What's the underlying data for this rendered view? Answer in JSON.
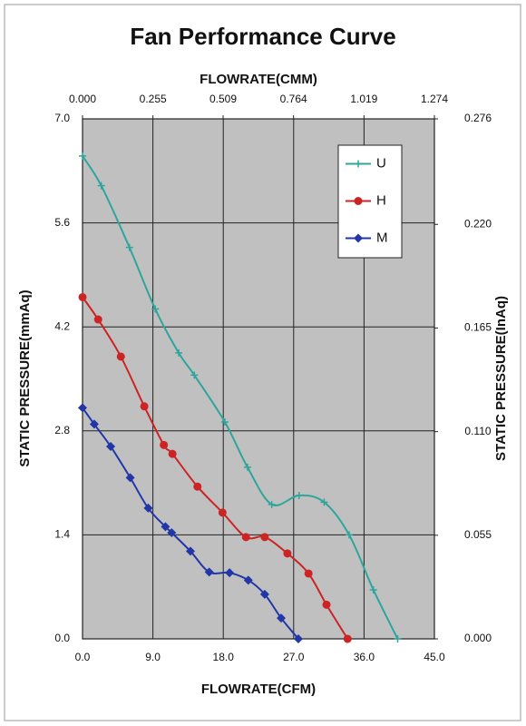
{
  "chart_data": {
    "type": "line",
    "title": "Fan Performance Curve",
    "x_label": "FLOWRATE(CFM)",
    "x2_label": "FLOWRATE(CMM)",
    "y_label": "STATIC PRESSURE(mmAq)",
    "y2_label": "STATIC PRESSURE(InAq)",
    "xlim": [
      0,
      45
    ],
    "xticks": [
      {
        "value": 0,
        "label": "0.0"
      },
      {
        "value": 9,
        "label": "9.0"
      },
      {
        "value": 18,
        "label": "18.0"
      },
      {
        "value": 27,
        "label": "27.0"
      },
      {
        "value": 36,
        "label": "36.0"
      },
      {
        "value": 45,
        "label": "45.0"
      }
    ],
    "x2lim": [
      0,
      1.274
    ],
    "x2ticks": [
      {
        "value": 0,
        "label": "0.000"
      },
      0.255,
      0.509,
      0.764,
      1.019,
      1.274
    ],
    "ylim": [
      0,
      7
    ],
    "yticks": [
      {
        "value": 0,
        "label": "0.0"
      },
      1.4,
      2.8,
      4.2,
      5.6,
      {
        "value": 7,
        "label": "7.0"
      }
    ],
    "y2lim": [
      0,
      0.276
    ],
    "y2ticks": [
      {
        "value": 0,
        "label": "0.000"
      },
      0.055,
      {
        "value": 0.11,
        "label": "0.110"
      },
      0.165,
      {
        "value": 0.22,
        "label": "0.220"
      },
      0.276
    ],
    "grid": true,
    "legend": "upper right",
    "series": [
      {
        "name": "U",
        "color": "#2ea59c",
        "marker": "plus",
        "x": [
          0,
          2.4,
          6.0,
          9.3,
          12.3,
          14.3,
          18.2,
          21.1,
          24.2,
          27.7,
          30.9,
          34.1,
          37.2,
          40.3
        ],
        "values": [
          6.5,
          6.1,
          5.27,
          4.44,
          3.85,
          3.55,
          2.92,
          2.31,
          1.81,
          1.93,
          1.84,
          1.4,
          0.66,
          0
        ]
      },
      {
        "name": "H",
        "color": "#cc2424",
        "marker": "circle",
        "x": [
          0,
          2.0,
          4.9,
          7.9,
          10.4,
          11.5,
          14.7,
          17.9,
          20.9,
          23.3,
          26.2,
          28.9,
          31.2,
          33.9
        ],
        "values": [
          4.6,
          4.3,
          3.8,
          3.13,
          2.61,
          2.49,
          2.05,
          1.7,
          1.37,
          1.37,
          1.15,
          0.88,
          0.46,
          0
        ]
      },
      {
        "name": "M",
        "color": "#2236a8",
        "marker": "diamond",
        "x": [
          0,
          1.5,
          3.6,
          6.1,
          8.4,
          10.6,
          11.4,
          13.8,
          16.2,
          18.8,
          21.2,
          23.3,
          25.4,
          27.6
        ],
        "values": [
          3.11,
          2.89,
          2.59,
          2.17,
          1.76,
          1.51,
          1.43,
          1.18,
          0.9,
          0.89,
          0.79,
          0.6,
          0.28,
          0
        ]
      }
    ]
  }
}
